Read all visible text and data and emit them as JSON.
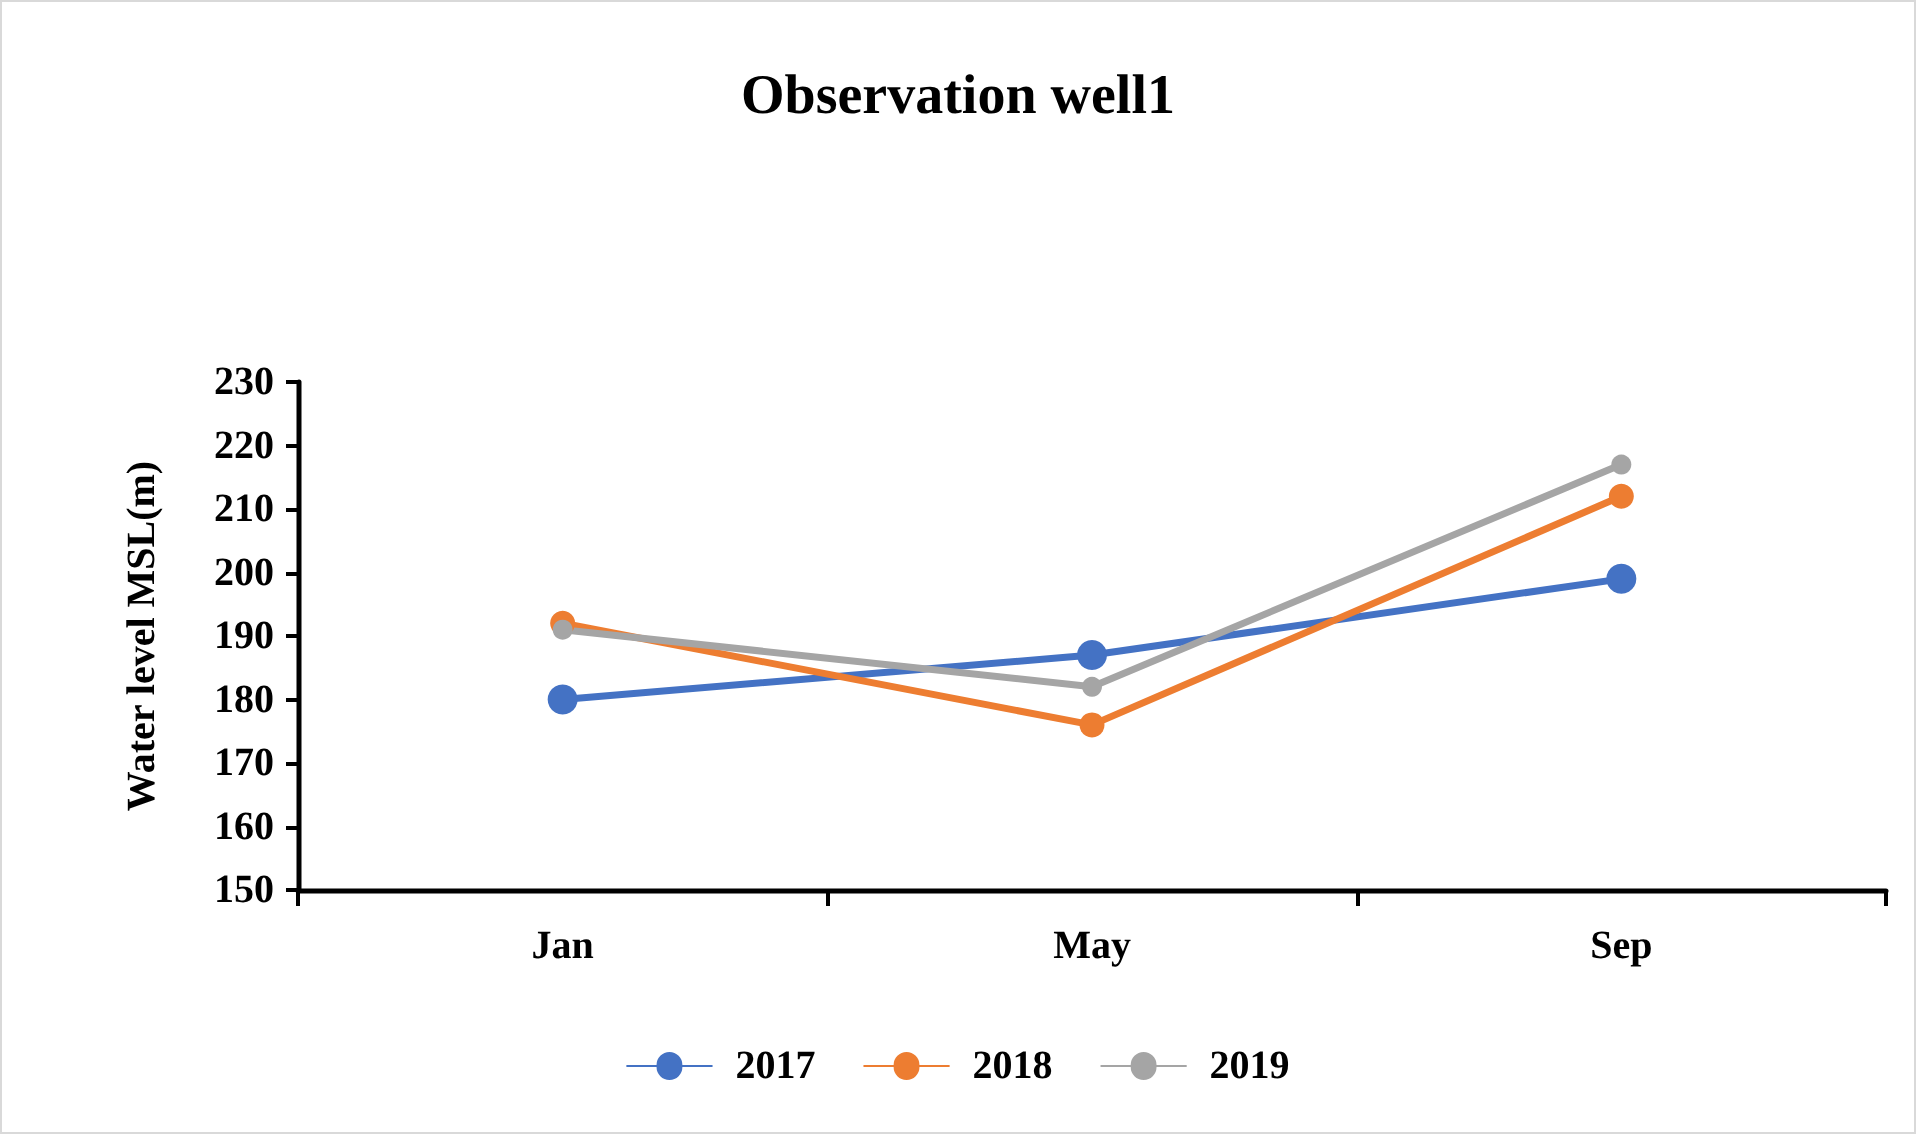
{
  "chart_data": {
    "type": "line",
    "title": "Observation well1",
    "ylabel": "Water level MSL(m)",
    "categories": [
      "Jan",
      "May",
      "Sep"
    ],
    "series": [
      {
        "name": "2017",
        "color": "#4472c4",
        "values": [
          180,
          187,
          199
        ]
      },
      {
        "name": "2018",
        "color": "#ed7d31",
        "values": [
          192,
          176,
          212
        ]
      },
      {
        "name": "2019",
        "color": "#a5a5a5",
        "values": [
          191,
          182,
          217
        ]
      }
    ],
    "ylim": [
      150,
      230
    ],
    "yticks": [
      150,
      160,
      170,
      180,
      190,
      200,
      210,
      220,
      230
    ],
    "grid": false,
    "legend": "bottom",
    "marker": "circle",
    "line_style": "solid"
  }
}
